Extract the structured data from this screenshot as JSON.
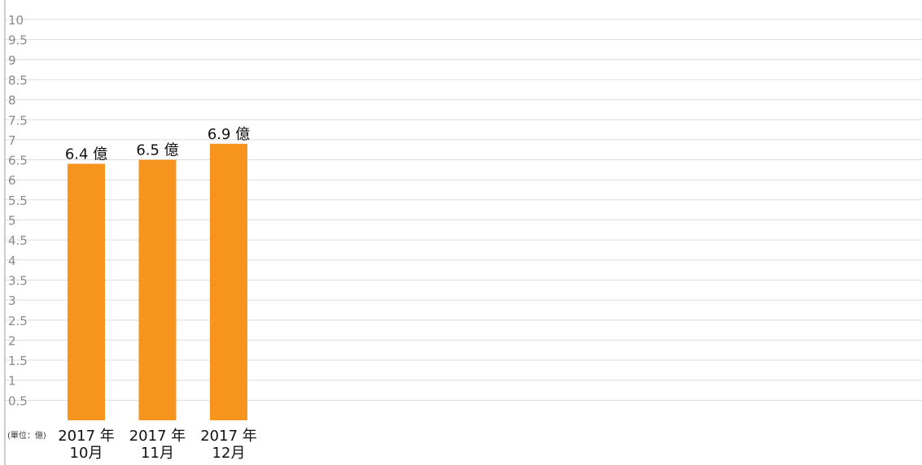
{
  "chart_data": {
    "type": "bar",
    "categories": [
      "2017 年\n10月",
      "2017 年\n11月",
      "2017 年\n12月"
    ],
    "values": [
      6.4,
      6.5,
      6.9
    ],
    "data_labels": [
      "6.4 億",
      "6.5 億",
      "6.9 億"
    ],
    "unit_label": "(單位：億)",
    "title": "",
    "xlabel": "",
    "ylabel": "",
    "ylim": [
      0,
      10
    ],
    "yticks": [
      "0.5",
      "1",
      "1.5",
      "2",
      "2.5",
      "3",
      "3.5",
      "4",
      "4.5",
      "5",
      "5.5",
      "6",
      "6.5",
      "7",
      "7.5",
      "8",
      "8.5",
      "9",
      "9.5",
      "10"
    ],
    "grid": true,
    "colors": {
      "bar": "#F7941D",
      "grid": "#DCDCDC",
      "axis": "#BBBBBB",
      "tick_text": "#8A8A8A",
      "label_text": "#111111"
    }
  }
}
